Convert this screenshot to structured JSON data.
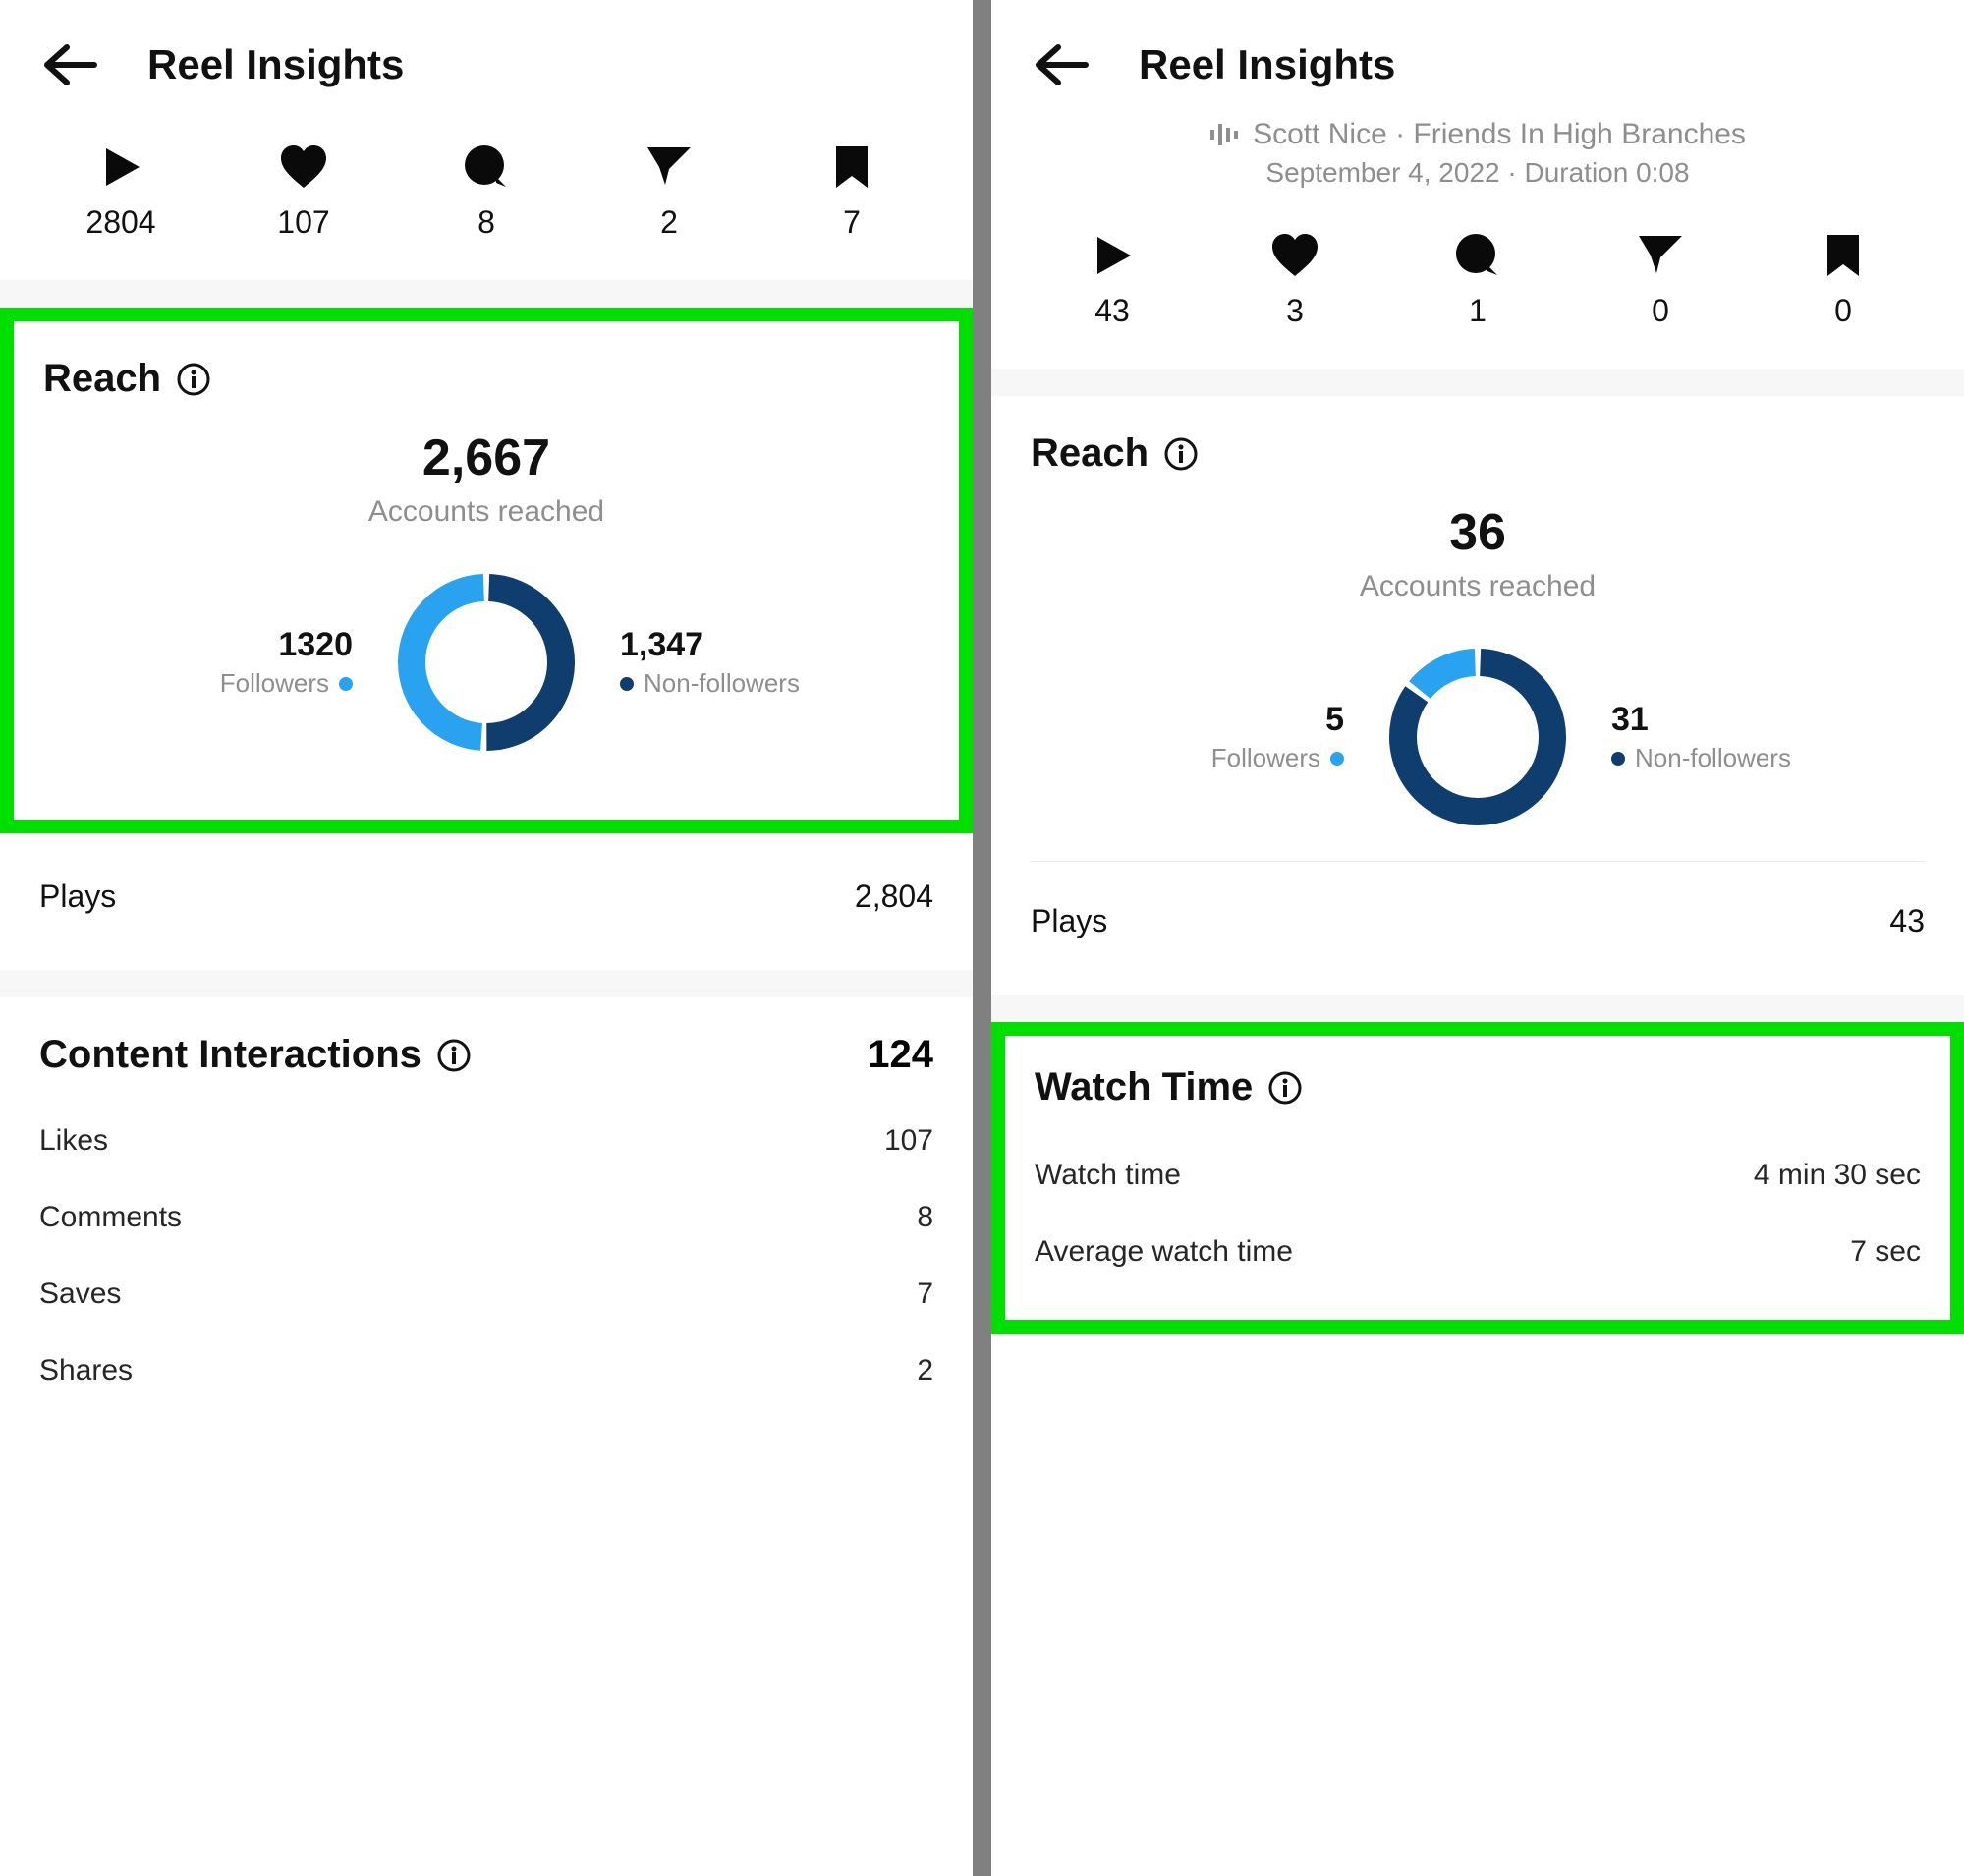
{
  "colors": {
    "text": "#111111",
    "muted": "#8e8e8e",
    "icon": "#0a0a0a",
    "highlight_border": "#00e000",
    "section_gap": "#f7f7f8",
    "follower_blue": "#29a3ef",
    "nonfollower_navy": "#0f3d6e",
    "donut_gap": "#ffffff"
  },
  "left": {
    "title": "Reel Insights",
    "stats": {
      "plays": "2804",
      "likes": "107",
      "comments": "8",
      "shares": "2",
      "saves": "7"
    },
    "reach": {
      "title": "Reach",
      "total": "2,667",
      "subtitle": "Accounts reached",
      "followers_value": "1320",
      "followers_label": "Followers",
      "nonfollowers_value": "1,347",
      "nonfollowers_label": "Non-followers",
      "donut": {
        "follower_pct": 49.5,
        "nonfollower_pct": 50.5
      }
    },
    "plays_row": {
      "label": "Plays",
      "value": "2,804"
    },
    "content_interactions": {
      "title": "Content Interactions",
      "total": "124",
      "rows": [
        {
          "label": "Likes",
          "value": "107"
        },
        {
          "label": "Comments",
          "value": "8"
        },
        {
          "label": "Saves",
          "value": "7"
        },
        {
          "label": "Shares",
          "value": "2"
        }
      ]
    }
  },
  "right": {
    "title": "Reel Insights",
    "audio_line": "Scott Nice · Friends In High Branches",
    "date_line": "September 4, 2022 · Duration 0:08",
    "stats": {
      "plays": "43",
      "likes": "3",
      "comments": "1",
      "shares": "0",
      "saves": "0"
    },
    "reach": {
      "title": "Reach",
      "total": "36",
      "subtitle": "Accounts reached",
      "followers_value": "5",
      "followers_label": "Followers",
      "nonfollowers_value": "31",
      "nonfollowers_label": "Non-followers",
      "donut": {
        "follower_pct": 13.9,
        "nonfollower_pct": 86.1
      }
    },
    "plays_row": {
      "label": "Plays",
      "value": "43"
    },
    "watch_time": {
      "title": "Watch Time",
      "rows": [
        {
          "label": "Watch time",
          "value": "4 min 30 sec"
        },
        {
          "label": "Average watch time",
          "value": "7 sec"
        }
      ]
    }
  }
}
